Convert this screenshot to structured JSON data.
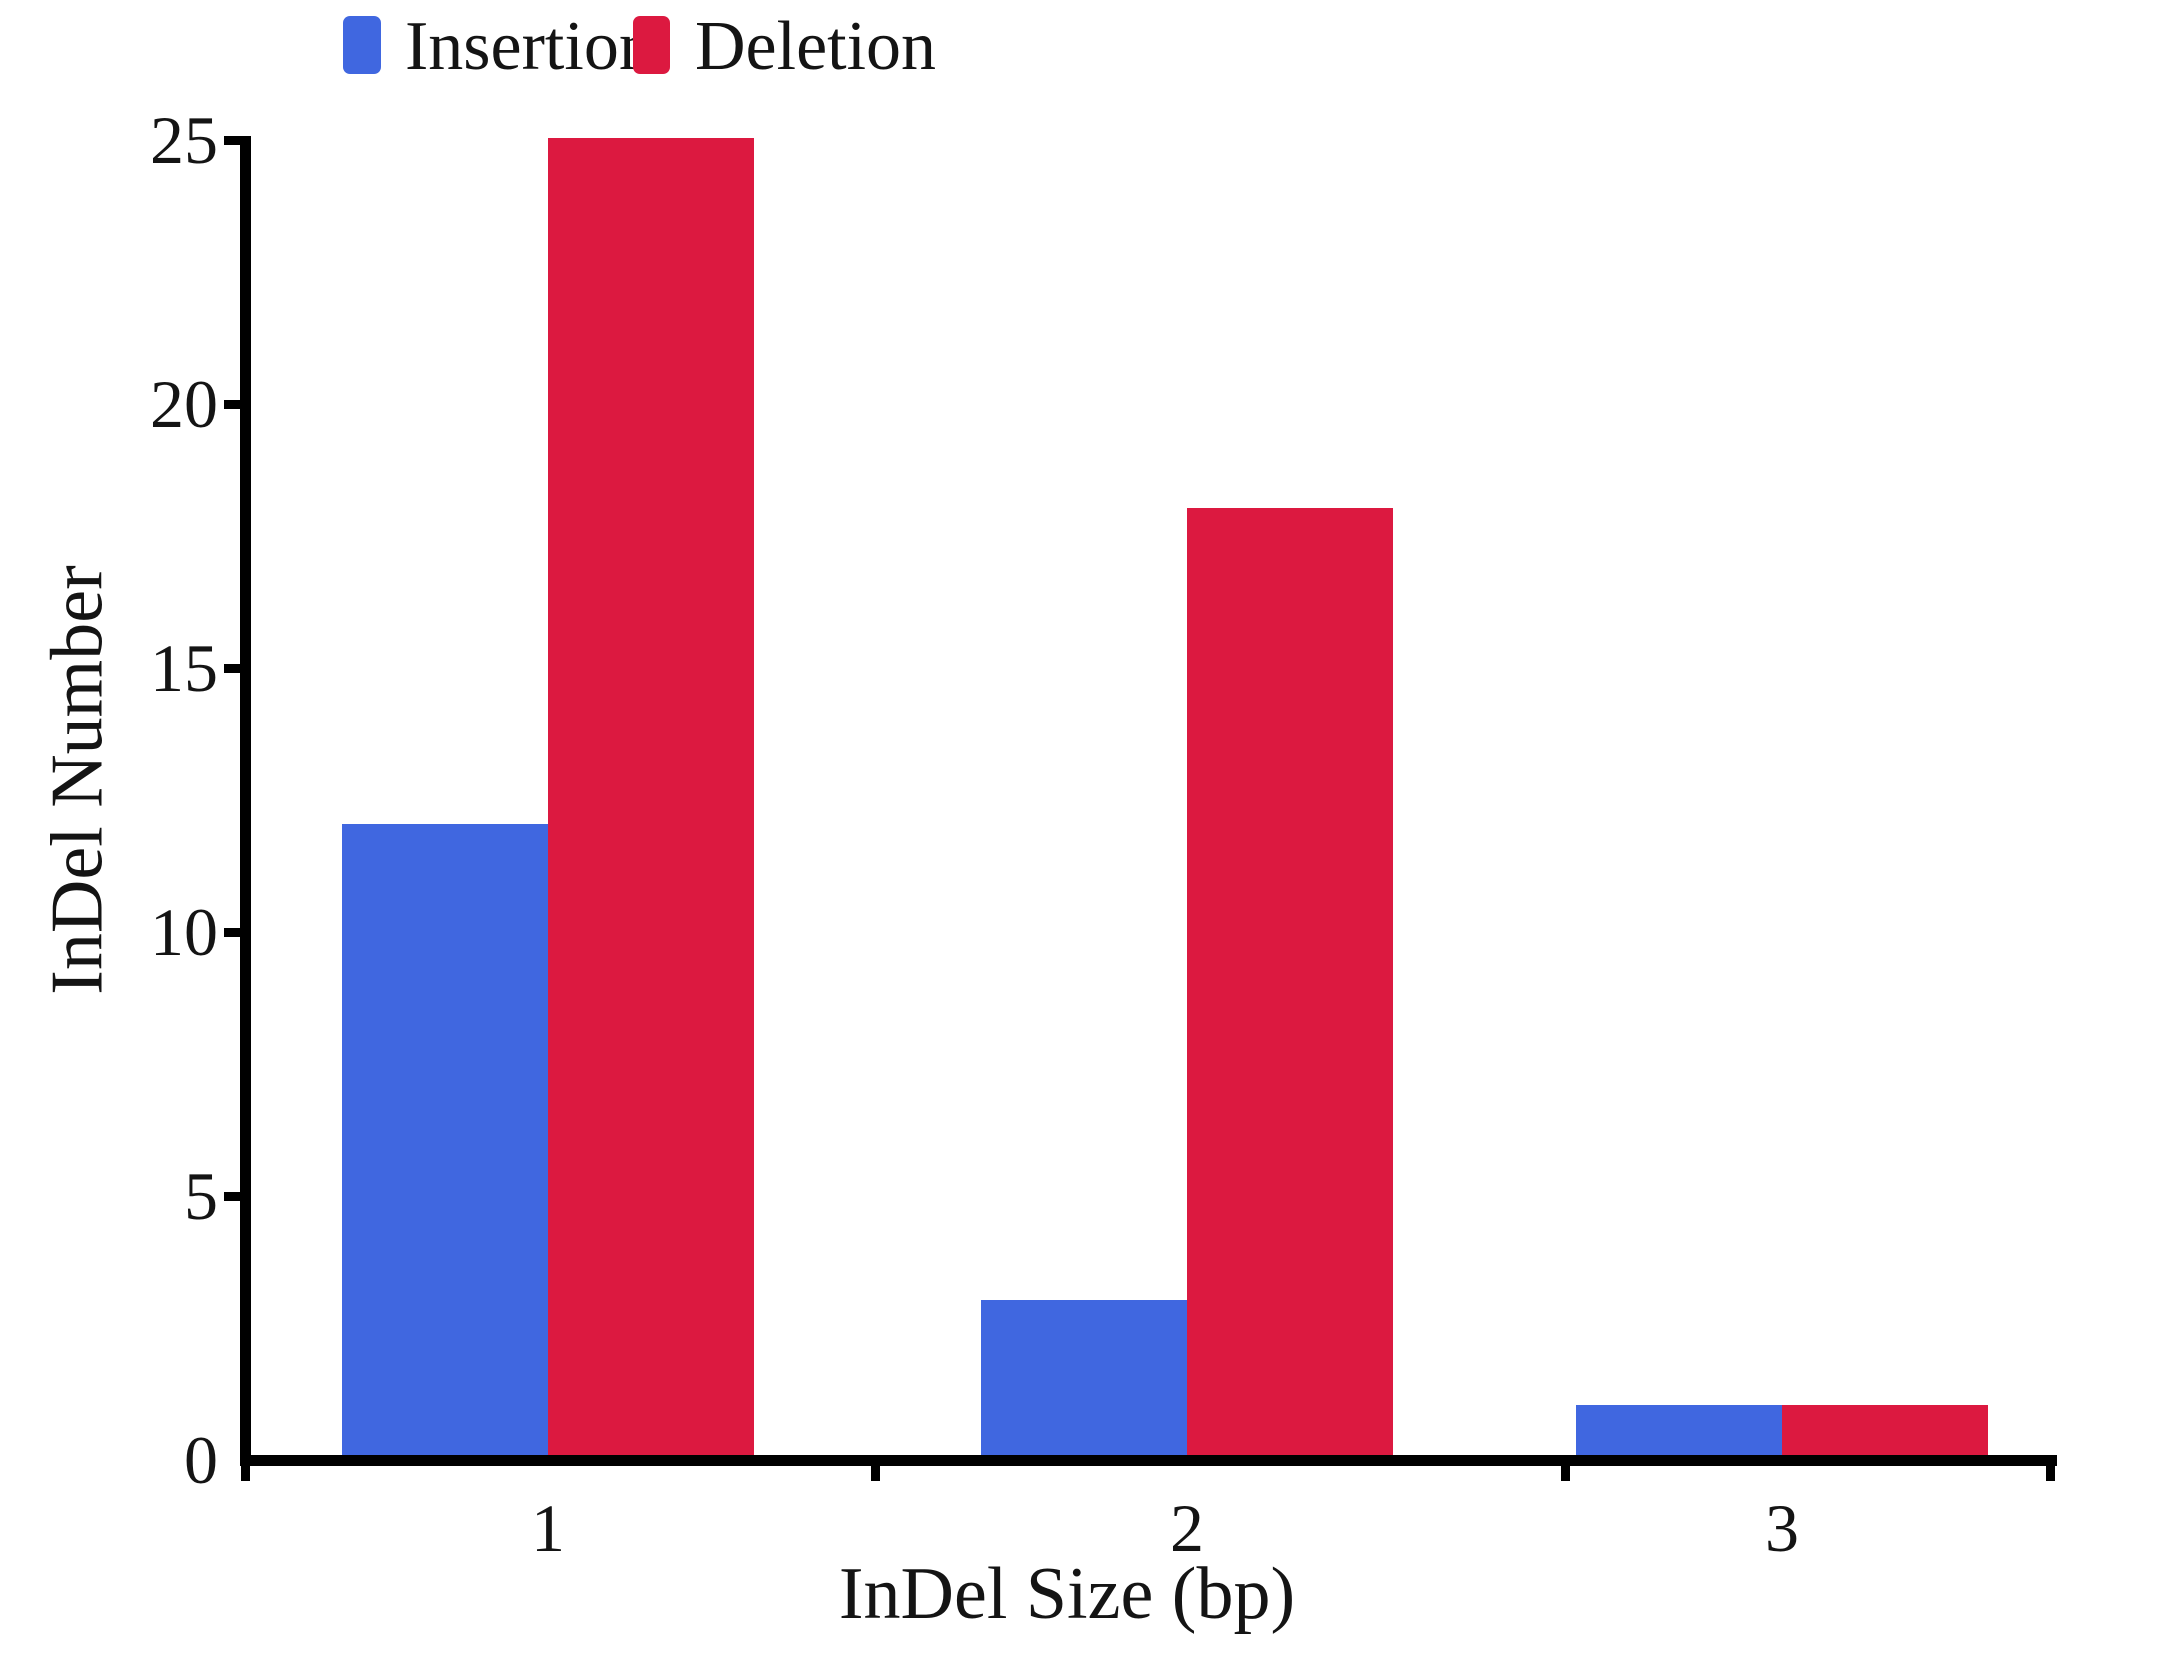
{
  "chart_data": {
    "type": "bar",
    "title": "",
    "categories": [
      "1",
      "2",
      "3"
    ],
    "series": [
      {
        "name": "Insertion",
        "color": "#4067E0",
        "values": [
          12,
          3,
          1
        ]
      },
      {
        "name": "Deletion",
        "color": "#DC1940",
        "values": [
          25,
          18,
          1
        ]
      }
    ],
    "xlabel": "InDel Size (bp)",
    "ylabel": "InDel Number",
    "ylim": [
      0,
      25
    ],
    "yticks": [
      0,
      5,
      10,
      15,
      20,
      25
    ],
    "legend_position": "top-left",
    "grid": false
  },
  "colors": {
    "axis": "#000000",
    "text": "#141414",
    "background": "#ffffff"
  }
}
